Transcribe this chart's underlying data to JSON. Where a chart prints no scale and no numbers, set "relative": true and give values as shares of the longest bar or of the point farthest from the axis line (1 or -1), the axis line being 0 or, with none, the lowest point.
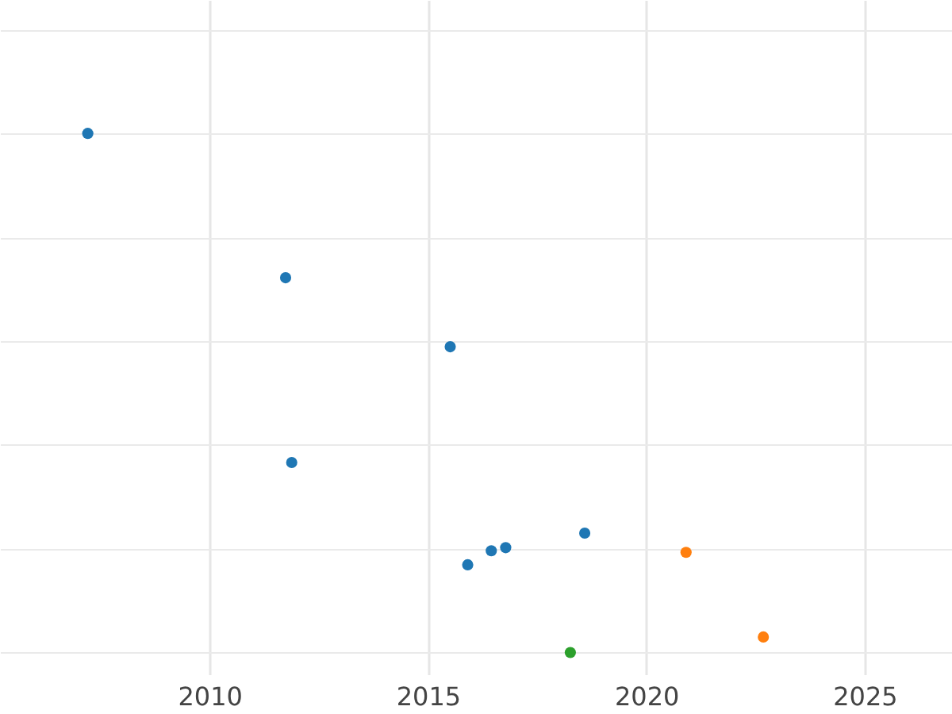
{
  "chart_data": {
    "type": "scatter",
    "relative": true,
    "tick_labels": "x",
    "grid": true,
    "legend": false,
    "marker": "circle",
    "xlim": [
      2005.2,
      2027
    ],
    "xticks": [
      2010,
      2015,
      2020,
      2025
    ],
    "series": [
      {
        "color": "#1f77b4",
        "x": [
          2007.21,
          2011.74,
          2015.51,
          2011.88,
          2018.59,
          2016.78,
          2016.45,
          2015.91
        ],
        "values": [
          1,
          0.722,
          0.589,
          0.366,
          0.23,
          0.202,
          0.196,
          0.169
        ]
      },
      {
        "color": "#ff7f0e",
        "x": [
          2020.91,
          2022.68
        ],
        "values": [
          0.193,
          0.03
        ]
      },
      {
        "color": "#2ca02c",
        "x": [
          2018.26
        ],
        "values": [
          0
        ]
      }
    ]
  }
}
